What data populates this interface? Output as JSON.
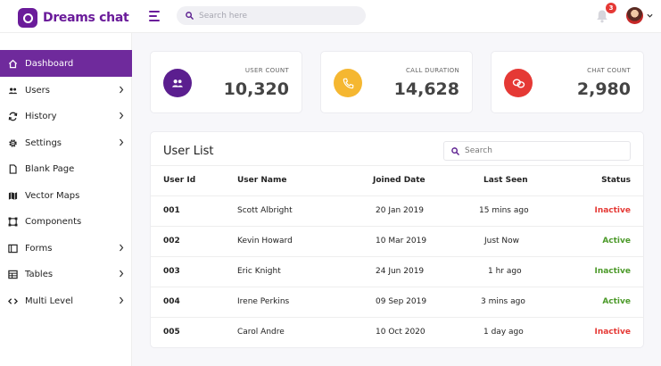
{
  "brand": {
    "name": "Dreams chat"
  },
  "header": {
    "search_placeholder": "Search here",
    "notification_count": "3"
  },
  "sidebar": {
    "items": [
      {
        "label": "Dashboard",
        "icon": "home-icon",
        "active": true,
        "has_children": false
      },
      {
        "label": "Users",
        "icon": "users-icon",
        "active": false,
        "has_children": true
      },
      {
        "label": "History",
        "icon": "refresh-icon",
        "active": false,
        "has_children": true
      },
      {
        "label": "Settings",
        "icon": "gear-icon",
        "active": false,
        "has_children": true
      },
      {
        "label": "Blank Page",
        "icon": "file-icon",
        "active": false,
        "has_children": false
      },
      {
        "label": "Vector Maps",
        "icon": "map-icon",
        "active": false,
        "has_children": false
      },
      {
        "label": "Components",
        "icon": "components-icon",
        "active": false,
        "has_children": false
      },
      {
        "label": "Forms",
        "icon": "forms-icon",
        "active": false,
        "has_children": true
      },
      {
        "label": "Tables",
        "icon": "table-icon",
        "active": false,
        "has_children": true
      },
      {
        "label": "Multi Level",
        "icon": "code-icon",
        "active": false,
        "has_children": true
      }
    ]
  },
  "stats": [
    {
      "label": "USER COUNT",
      "value": "10,320",
      "icon": "users-icon",
      "color": "#5b1e8f"
    },
    {
      "label": "CALL DURATION",
      "value": "14,628",
      "icon": "phone-icon",
      "color": "#f5b731"
    },
    {
      "label": "CHAT COUNT",
      "value": "2,980",
      "icon": "chat-icon",
      "color": "#e53935"
    }
  ],
  "user_list": {
    "title": "User List",
    "search_placeholder": "Search",
    "columns": [
      "User Id",
      "User Name",
      "Joined Date",
      "Last Seen",
      "Status"
    ],
    "rows": [
      {
        "id": "001",
        "name": "Scott Albright",
        "joined": "20 Jan 2019",
        "last_seen": "15 mins ago",
        "status": "Inactive"
      },
      {
        "id": "002",
        "name": "Kevin Howard",
        "joined": "10 Mar 2019",
        "last_seen": "Just Now",
        "status": "Active"
      },
      {
        "id": "003",
        "name": "Eric Knight",
        "joined": "24 Jun 2019",
        "last_seen": "1 hr ago",
        "status": "Inactive"
      },
      {
        "id": "004",
        "name": "Irene Perkins",
        "joined": "09 Sep 2019",
        "last_seen": "3 mins ago",
        "status": "Active"
      },
      {
        "id": "005",
        "name": "Carol Andre",
        "joined": "10 Oct 2020",
        "last_seen": "1 day ago",
        "status": "Inactive"
      }
    ]
  },
  "colors": {
    "brand": "#6a1b9a",
    "active_nav": "#6f2a9c",
    "status_active": "#4c9a2a",
    "status_inactive": "#e53935"
  }
}
